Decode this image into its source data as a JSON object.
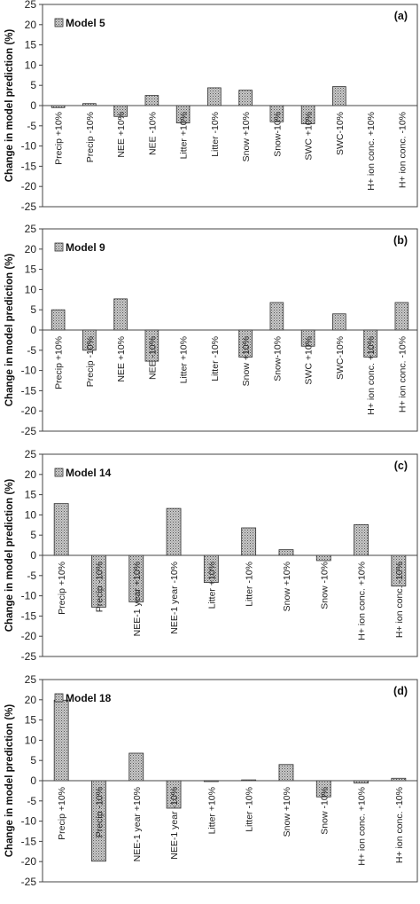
{
  "ylabel": "Change in model prediction (%)",
  "yticks": [
    25,
    20,
    15,
    10,
    5,
    0,
    -5,
    -10,
    -15,
    -20,
    -25
  ],
  "chart_data": [
    {
      "type": "bar",
      "panel": "(a)",
      "legend": "Model 5",
      "ylabel": "Change in model prediction (%)",
      "ylim": [
        -25,
        25
      ],
      "categories": [
        "Precip +10%",
        "Precip -10%",
        "NEE +10%",
        "NEE -10%",
        "Litter +10%",
        "Litter -10%",
        "Snow +10%",
        "Snow-10%",
        "SWC +10%",
        "SWC-10%",
        "H+ ion conc. +10%",
        "H+ ion conc. -10%"
      ],
      "values": [
        -0.5,
        0.5,
        -2.7,
        2.5,
        -4.3,
        4.4,
        3.8,
        -4.0,
        -4.5,
        4.7,
        0,
        0
      ]
    },
    {
      "type": "bar",
      "panel": "(b)",
      "legend": "Model 9",
      "ylabel": "Change in model prediction (%)",
      "ylim": [
        -25,
        25
      ],
      "categories": [
        "Precip +10%",
        "Precip -10%",
        "NEE +10%",
        "NEE -10%",
        "Litter +10%",
        "Litter -10%",
        "Snow +10%",
        "Snow-10%",
        "SWC +10%",
        "SWC-10%",
        "H+ ion conc. +10%",
        "H+ ion conc. -10%"
      ],
      "values": [
        5.0,
        -5.0,
        7.7,
        -7.7,
        0,
        0,
        -6.7,
        6.8,
        -4.0,
        4.0,
        -6.7,
        6.8
      ]
    },
    {
      "type": "bar",
      "panel": "(c)",
      "legend": "Model 14",
      "ylabel": "Change in model prediction (%)",
      "ylim": [
        -25,
        25
      ],
      "categories": [
        "Precip +10%",
        "Precip -10%",
        "NEE-1 year +10%",
        "NEE-1 year -10%",
        "Litter +10%",
        "Litter -10%",
        "Snow +10%",
        "Snow -10%",
        "H+ ion conc. +10%",
        "H+ ion conc. -10%"
      ],
      "values": [
        12.8,
        -12.8,
        -11.5,
        11.6,
        -6.7,
        6.8,
        1.4,
        -1.3,
        7.6,
        -7.6
      ]
    },
    {
      "type": "bar",
      "panel": "(d)",
      "legend": "Model 18",
      "ylabel": "Change in model prediction (%)",
      "ylim": [
        -25,
        25
      ],
      "categories": [
        "Precip +10%",
        "Precip -10%",
        "NEE-1 year +10%",
        "NEE-1 year -10%",
        "Litter +10%",
        "Litter -10%",
        "Snow +10%",
        "Snow -10%",
        "H+ ion conc. +10%",
        "H+ ion conc. -10%"
      ],
      "values": [
        19.9,
        -19.9,
        6.8,
        -6.8,
        -0.2,
        0.2,
        4.0,
        -4.0,
        -0.6,
        0.6
      ]
    }
  ]
}
